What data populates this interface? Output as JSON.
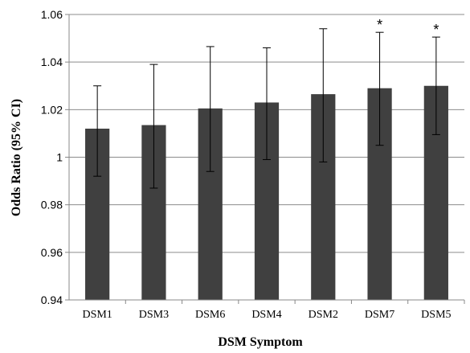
{
  "chart_data": {
    "type": "bar",
    "categories": [
      "DSM1",
      "DSM3",
      "DSM6",
      "DSM4",
      "DSM2",
      "DSM7",
      "DSM5"
    ],
    "values": [
      1.012,
      1.0135,
      1.0205,
      1.023,
      1.0265,
      1.029,
      1.03
    ],
    "ci_lower": [
      0.992,
      0.987,
      0.994,
      0.999,
      0.998,
      1.005,
      1.0095
    ],
    "ci_upper": [
      1.03,
      1.039,
      1.0465,
      1.046,
      1.054,
      1.0525,
      1.0505
    ],
    "annotations": [
      "",
      "",
      "",
      "",
      "",
      "*",
      "*"
    ],
    "xlabel": "DSM Symptom",
    "ylabel": "Odds Ratio (95% CI)",
    "ylim": [
      0.94,
      1.06
    ],
    "yticks": [
      0.94,
      0.96,
      0.98,
      1.0,
      1.02,
      1.04,
      1.06
    ],
    "ytick_labels": [
      "0.94",
      "0.96",
      "0.98",
      "1",
      "1.02",
      "1.04",
      "1.06"
    ],
    "grid": "horizontal",
    "bar_color": "#404040"
  }
}
